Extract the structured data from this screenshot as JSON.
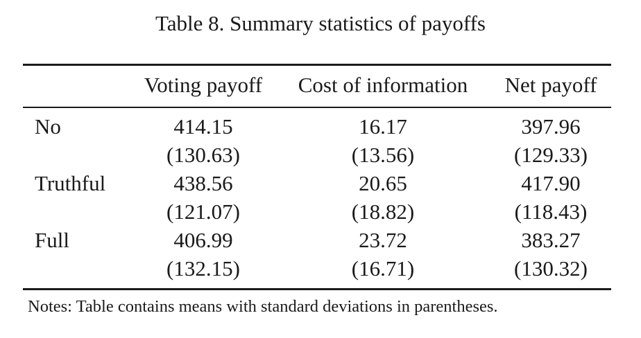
{
  "table": {
    "title": "Table 8. Summary statistics of payoffs",
    "columns": [
      "Voting payoff",
      "Cost of information",
      "Net payoff"
    ],
    "rows": [
      {
        "label": "No",
        "means": [
          "414.15",
          "16.17",
          "397.96"
        ],
        "sds": [
          "(130.63)",
          "(13.56)",
          "(129.33)"
        ]
      },
      {
        "label": "Truthful",
        "means": [
          "438.56",
          "20.65",
          "417.90"
        ],
        "sds": [
          "(121.07)",
          "(18.82)",
          "(118.43)"
        ]
      },
      {
        "label": "Full",
        "means": [
          "406.99",
          "23.72",
          "383.27"
        ],
        "sds": [
          "(132.15)",
          "(16.71)",
          "(130.32)"
        ]
      }
    ],
    "notes": "Notes: Table contains means with standard deviations in parentheses."
  }
}
